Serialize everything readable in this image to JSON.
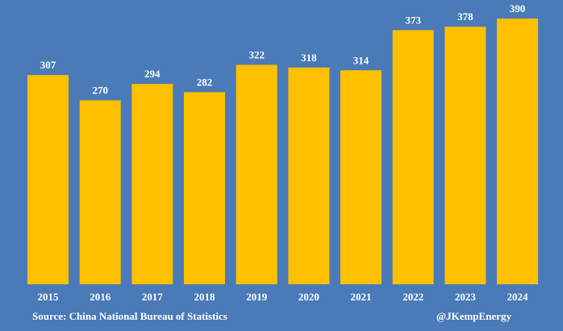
{
  "chart_data": {
    "type": "bar",
    "title": "",
    "xlabel": "",
    "ylabel": "",
    "categories": [
      "2015",
      "2016",
      "2017",
      "2018",
      "2019",
      "2020",
      "2021",
      "2022",
      "2023",
      "2024"
    ],
    "values": [
      307,
      270,
      294,
      282,
      322,
      318,
      314,
      373,
      378,
      390
    ],
    "ylim": [
      0,
      400
    ],
    "grid": false,
    "legend": "none",
    "colors": {
      "background": "#4a7ab8",
      "bar": "#ffc000",
      "text": "#ffffff"
    }
  },
  "footer": {
    "source": "Source: China National Bureau of Statistics",
    "credit": "@JKempEnergy"
  }
}
